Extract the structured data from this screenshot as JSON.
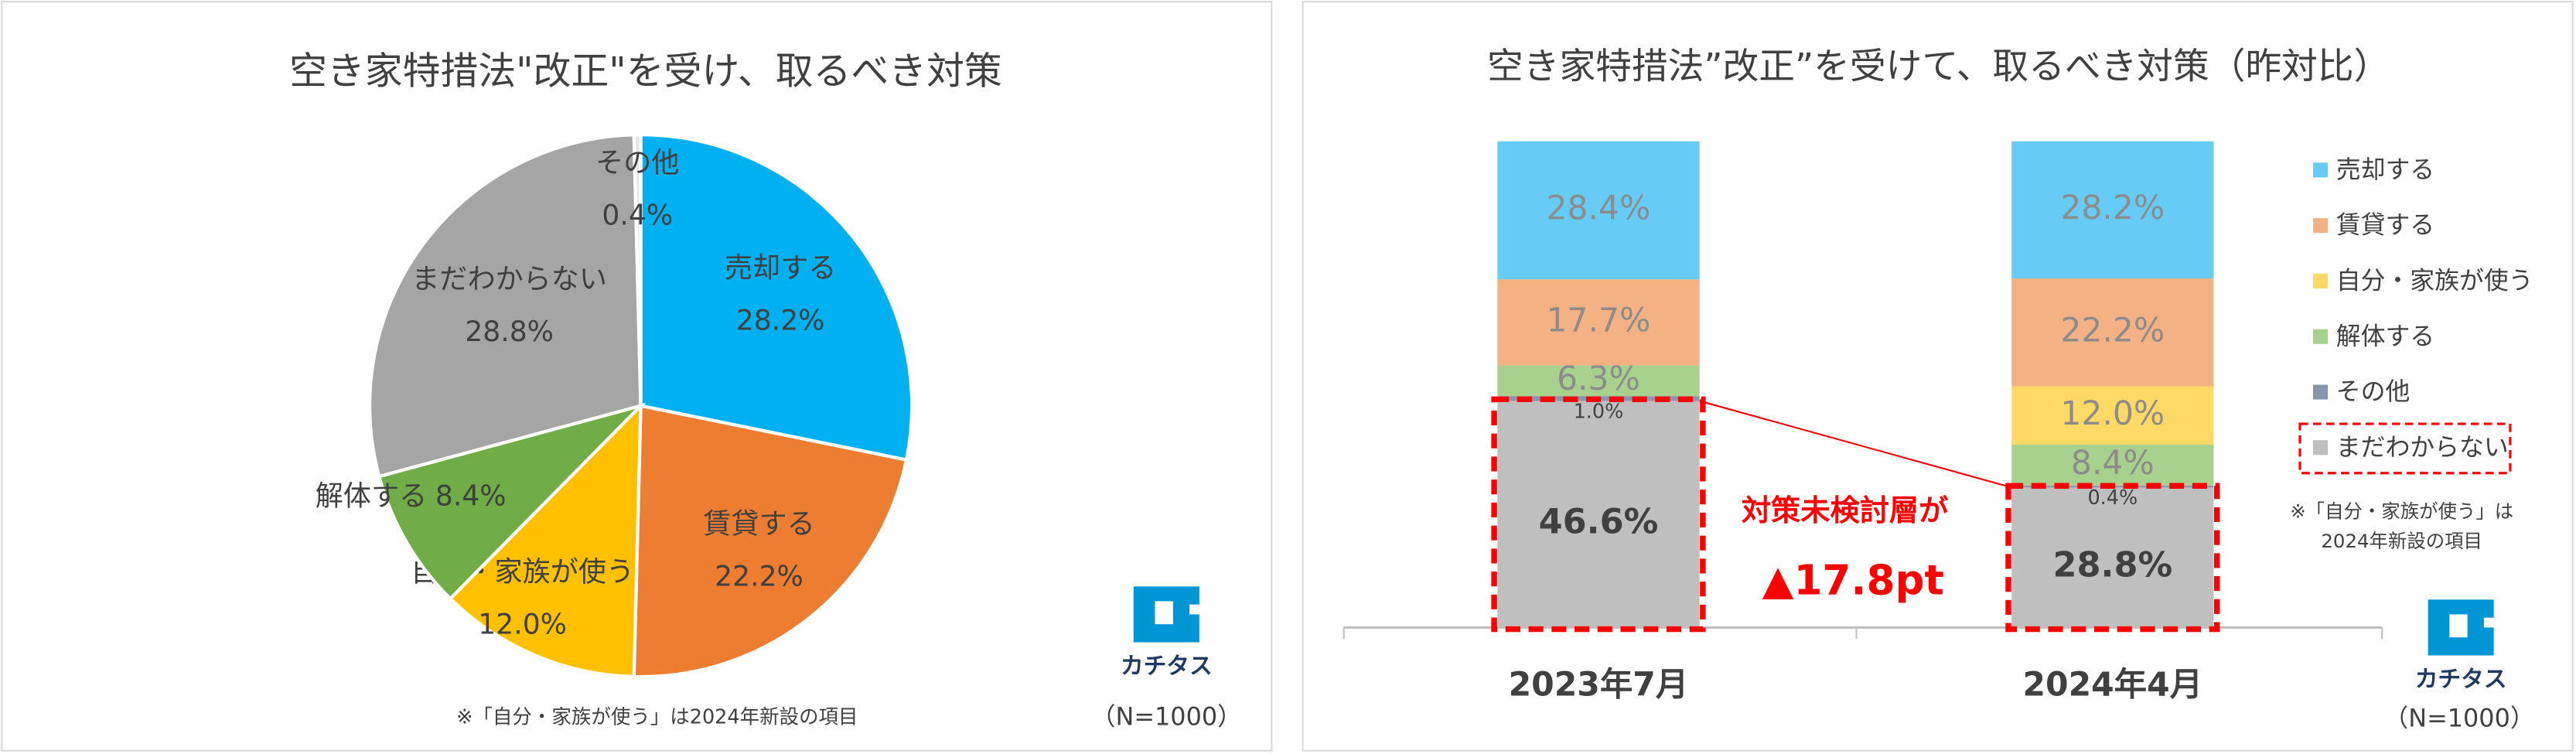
{
  "chart_data": [
    {
      "type": "pie",
      "title": "空き家特措法\"改正\"を受け、取るべき対策",
      "categories": [
        "売却する",
        "賃貸する",
        "自分・家族が使う",
        "解体する",
        "まだわからない",
        "その他"
      ],
      "values": [
        28.2,
        22.2,
        12.0,
        8.4,
        28.8,
        0.4
      ],
      "value_labels": [
        "28.2%",
        "22.2%",
        "12.0%",
        "8.4%",
        "28.8%",
        "0.4%"
      ],
      "colors": [
        "#00b0f0",
        "#ed7d31",
        "#ffc000",
        "#70ad47",
        "#a5a5a5",
        "#e7e6e6"
      ],
      "note": "※「自分・家族が使う」は2024年新設の項目",
      "sample": "（N=1000）",
      "logo": "カチタス"
    },
    {
      "type": "stacked-bar",
      "title": "空き家特措法”改正”を受けて、取るべき対策（昨対比）",
      "categories": [
        "2023年7月",
        "2024年4月"
      ],
      "series": [
        {
          "name": "売却する",
          "color": "#66ccf5",
          "values": [
            28.4,
            28.2
          ],
          "value_labels": [
            "28.4%",
            "28.2%"
          ]
        },
        {
          "name": "賃貸する",
          "color": "#f4b183",
          "values": [
            17.7,
            22.2
          ],
          "value_labels": [
            "17.7%",
            "22.2%"
          ]
        },
        {
          "name": "自分・家族が使う",
          "color": "#ffd966",
          "values": [
            null,
            12.0
          ],
          "value_labels": [
            null,
            "12.0%"
          ]
        },
        {
          "name": "解体する",
          "color": "#a9d18e",
          "values": [
            6.3,
            8.4
          ],
          "value_labels": [
            "6.3%",
            "8.4%"
          ]
        },
        {
          "name": "その他",
          "color": "#8497b0",
          "values": [
            1.0,
            0.4
          ],
          "value_labels": [
            "1.0%",
            "0.4%"
          ]
        },
        {
          "name": "まだわからない",
          "color": "#bfbfbf",
          "values": [
            46.6,
            28.8
          ],
          "value_labels": [
            "46.6%",
            "28.8%"
          ]
        }
      ],
      "highlight_series": 5,
      "annotation": [
        "対策未検討層が",
        "▲17.8pt"
      ],
      "note": [
        "※「自分・家族が使う」は",
        "2024年新設の項目"
      ],
      "sample": "（N=1000）",
      "logo": "カチタス"
    }
  ]
}
